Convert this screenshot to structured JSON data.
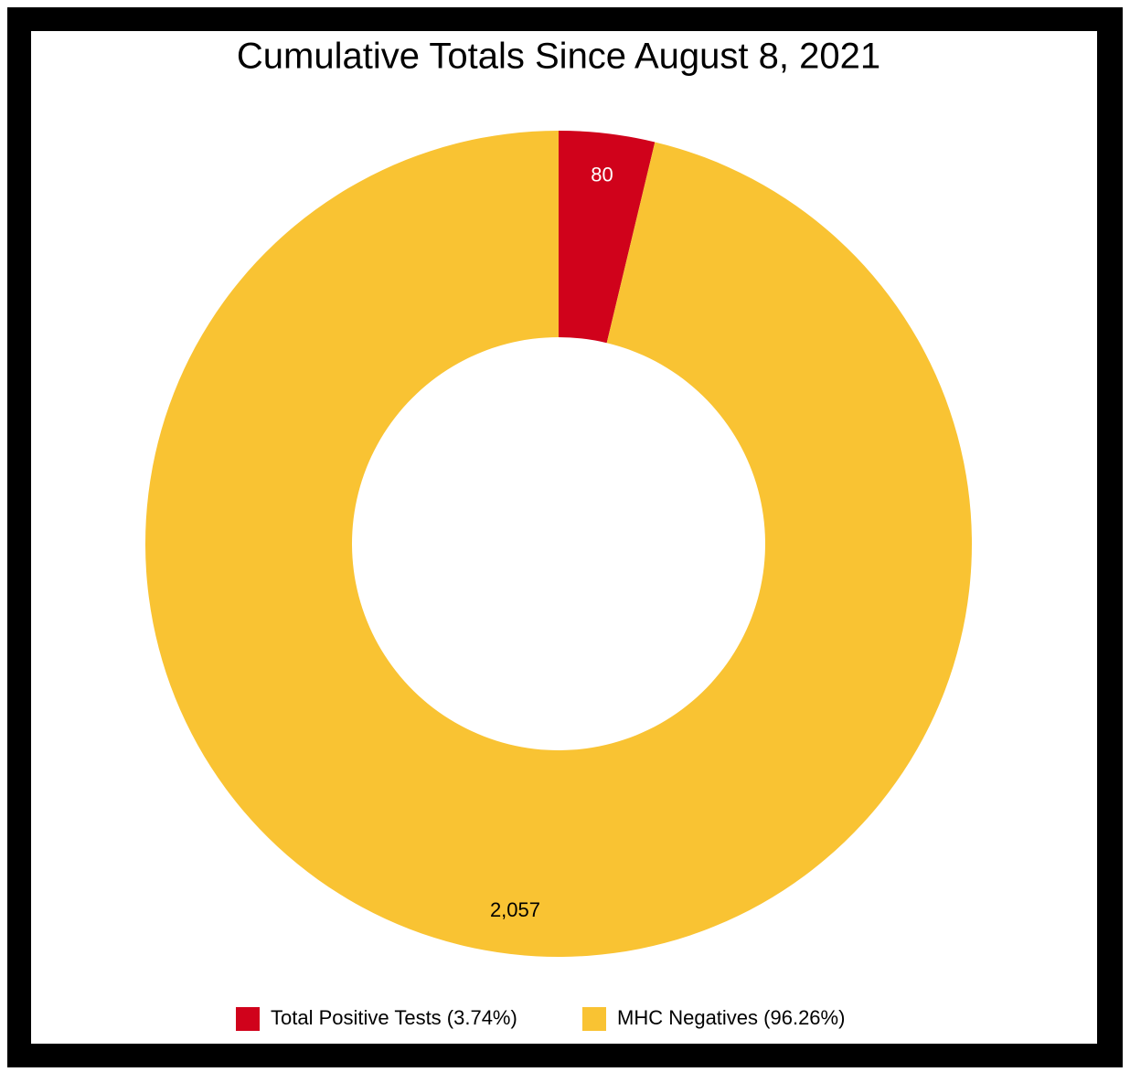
{
  "chart_data": {
    "type": "donut",
    "title": "Cumulative Totals Since August 8, 2021",
    "categories": [
      "Total Positive Tests (3.74%)",
      "MHC Negatives (96.26%)"
    ],
    "values": [
      80,
      2057
    ],
    "value_labels": [
      "80",
      "2,057"
    ],
    "colors": [
      "#d0021b",
      "#f9c333"
    ],
    "legend": "bottom"
  }
}
